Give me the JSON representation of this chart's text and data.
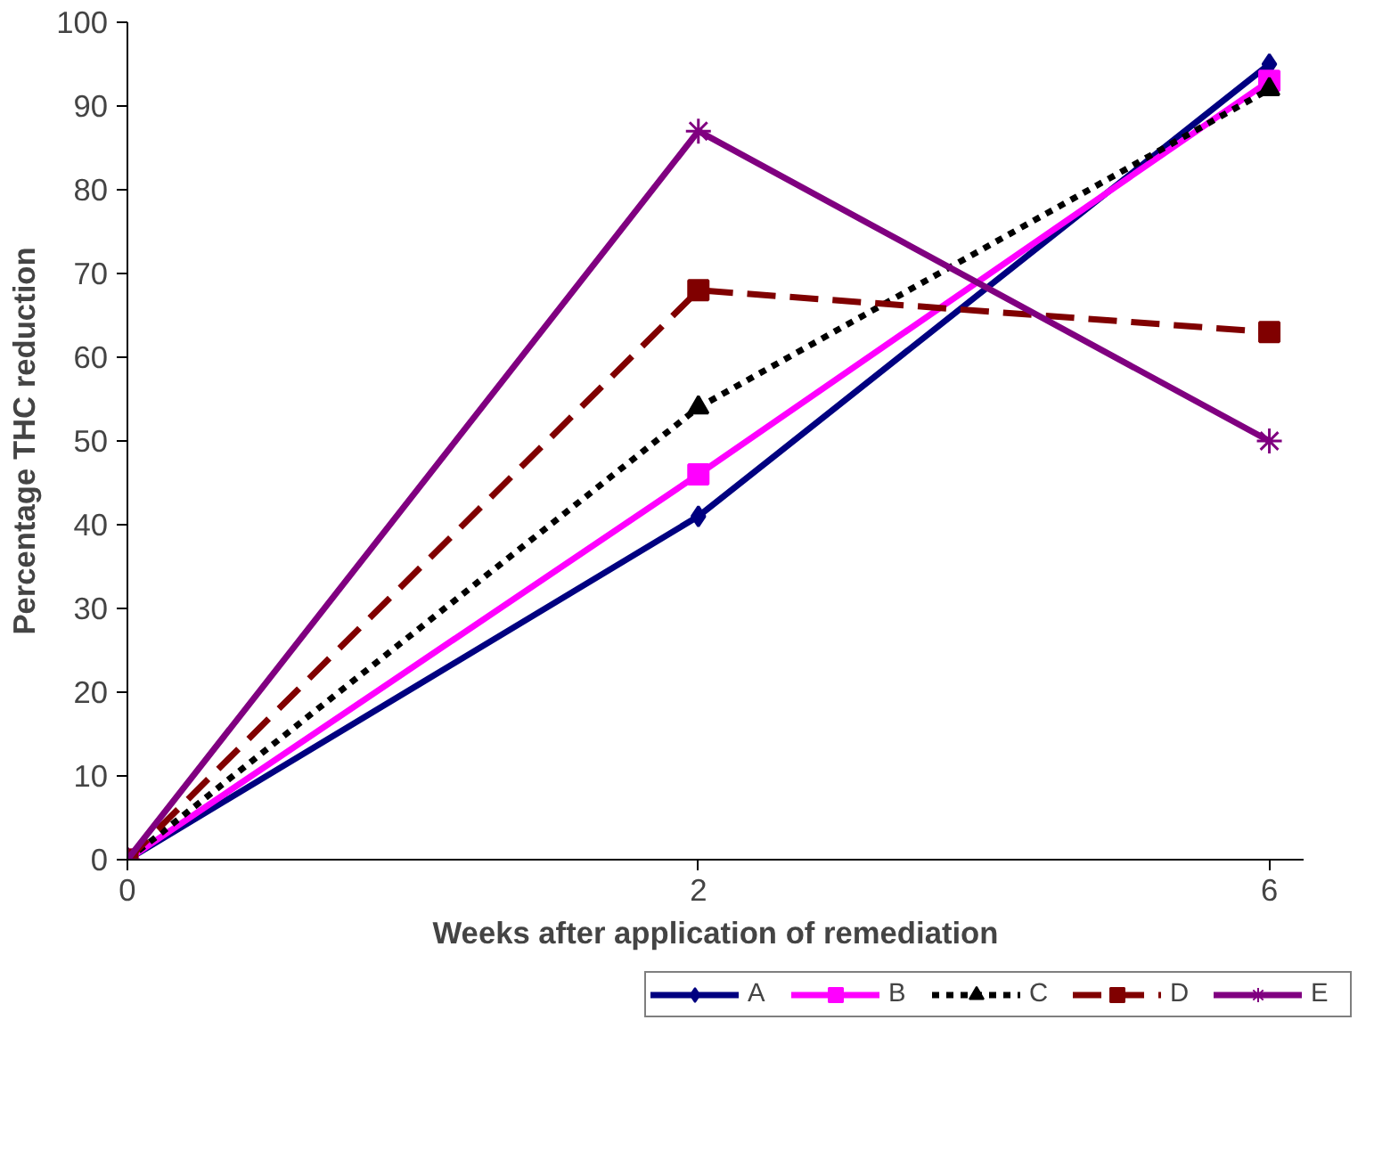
{
  "chart_data": {
    "type": "line",
    "xlabel": "Weeks after application of remediation",
    "ylabel": "Percentage THC reduction",
    "categories": [
      "0",
      "2",
      "6"
    ],
    "series": [
      {
        "name": "A",
        "color": "#000080",
        "values": [
          0,
          41,
          95
        ],
        "marker": "diamond",
        "line_style": "solid"
      },
      {
        "name": "B",
        "color": "#ff00ff",
        "values": [
          0,
          46,
          93
        ],
        "marker": "square",
        "line_style": "solid"
      },
      {
        "name": "C",
        "color": "#000000",
        "values": [
          0,
          54,
          92
        ],
        "marker": "triangle",
        "line_style": "dotted"
      },
      {
        "name": "D",
        "color": "#800000",
        "values": [
          0,
          68,
          63
        ],
        "marker": "square",
        "line_style": "dashed"
      },
      {
        "name": "E",
        "color": "#800080",
        "values": [
          0,
          87,
          50
        ],
        "marker": "cross",
        "line_style": "solid"
      }
    ],
    "ylim": [
      0,
      100
    ],
    "yticks": [
      0,
      10,
      20,
      30,
      40,
      50,
      60,
      70,
      80,
      90,
      100
    ],
    "grid": false,
    "legend": "bottom right"
  }
}
